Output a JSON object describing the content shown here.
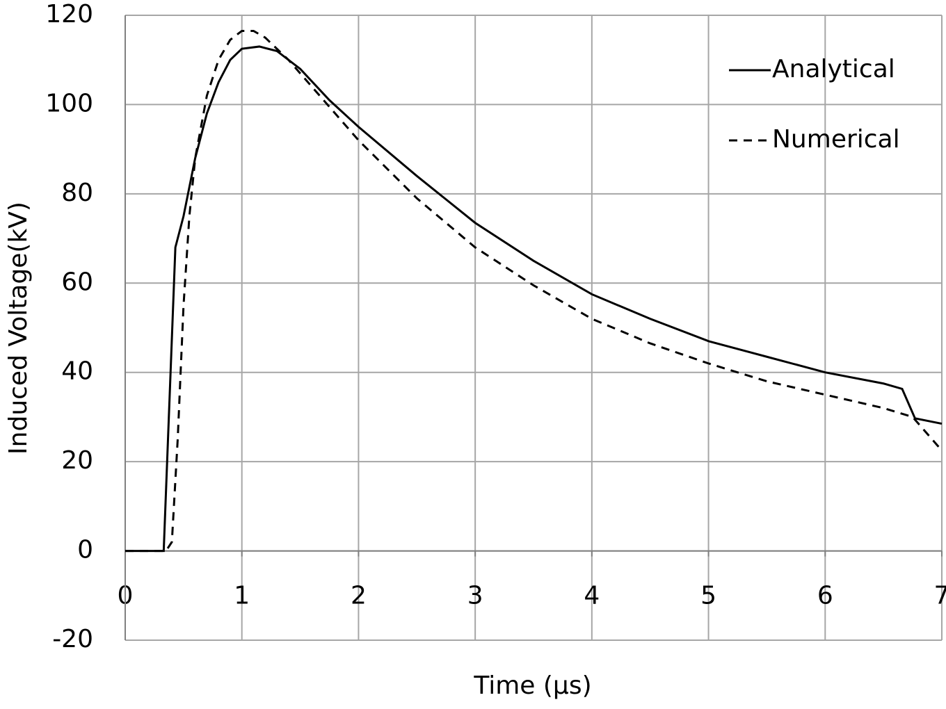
{
  "chart_data": {
    "type": "line",
    "x_label": "Time (µs)",
    "y_label": "Induced Voltage(kV)",
    "xlim": [
      0,
      7
    ],
    "xticks": [
      0,
      1,
      2,
      3,
      4,
      5,
      6,
      7
    ],
    "ylim": [
      -20,
      120
    ],
    "yticks": [
      -20,
      0,
      20,
      40,
      60,
      80,
      100,
      120
    ],
    "grid": true,
    "legend": "top-right",
    "series": [
      {
        "name": "Analytical",
        "color": "#000000",
        "line_style": "solid",
        "x": [
          0,
          0.33,
          0.43,
          0.5,
          0.6,
          0.7,
          0.8,
          0.9,
          1.0,
          1.15,
          1.3,
          1.5,
          1.75,
          2.0,
          2.5,
          3.0,
          3.5,
          4.0,
          4.5,
          5.0,
          5.5,
          6.0,
          6.5,
          6.66,
          6.77,
          7.0
        ],
        "values": [
          0,
          0,
          68,
          75,
          88,
          98,
          105,
          110,
          112.5,
          113,
          112,
          108,
          101,
          95,
          84,
          73.5,
          65,
          57.5,
          52,
          47,
          43.5,
          40,
          37.5,
          36.3,
          29.7,
          28.5
        ]
      },
      {
        "name": "Numerical",
        "color": "#000000",
        "line_style": "dashed",
        "x": [
          0,
          0.35,
          0.4,
          0.45,
          0.5,
          0.55,
          0.6,
          0.7,
          0.8,
          0.9,
          1.0,
          1.1,
          1.2,
          1.4,
          1.6,
          2.0,
          2.5,
          3.0,
          3.5,
          4.0,
          4.5,
          5.0,
          5.5,
          6.0,
          6.5,
          6.75,
          7.0
        ],
        "values": [
          0,
          0,
          2,
          25,
          55,
          75,
          88,
          102,
          110,
          114.5,
          116.5,
          116.5,
          115,
          110,
          104,
          92,
          79,
          68,
          59.5,
          52,
          46.5,
          42,
          38,
          35,
          32,
          30,
          22.5
        ]
      }
    ]
  }
}
